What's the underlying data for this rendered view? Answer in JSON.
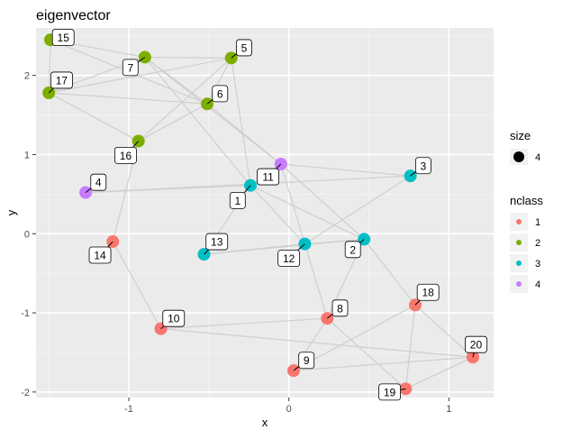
{
  "chart_data": {
    "type": "scatter",
    "title": "eigenvector",
    "xlabel": "x",
    "ylabel": "y",
    "xlim": [
      -1.58,
      1.28
    ],
    "ylim": [
      -2.07,
      2.6
    ],
    "x_ticks": [
      -1,
      0,
      1
    ],
    "y_ticks": [
      -2,
      -1,
      0,
      1,
      2
    ],
    "grid": true,
    "legend_placement": "right",
    "size_legend": {
      "title": "size",
      "entries": [
        {
          "label": "4"
        }
      ]
    },
    "color_legend": {
      "title": "nclass",
      "entries": [
        {
          "label": "1",
          "color": "#F8766D"
        },
        {
          "label": "2",
          "color": "#7CAE00"
        },
        {
          "label": "3",
          "color": "#00BFC4"
        },
        {
          "label": "4",
          "color": "#C77CFF"
        }
      ]
    },
    "nodes": [
      {
        "id": "1",
        "x": -0.24,
        "y": 0.61,
        "nclass": "3",
        "label_x": -0.32,
        "label_y": 0.42
      },
      {
        "id": "2",
        "x": 0.47,
        "y": -0.07,
        "nclass": "3",
        "label_x": 0.4,
        "label_y": -0.2
      },
      {
        "id": "3",
        "x": 0.76,
        "y": 0.73,
        "nclass": "3",
        "label_x": 0.84,
        "label_y": 0.86
      },
      {
        "id": "4",
        "x": -1.27,
        "y": 0.52,
        "nclass": "4",
        "label_x": -1.19,
        "label_y": 0.65
      },
      {
        "id": "5",
        "x": -0.36,
        "y": 2.22,
        "nclass": "2",
        "label_x": -0.28,
        "label_y": 2.35
      },
      {
        "id": "6",
        "x": -0.51,
        "y": 1.64,
        "nclass": "2",
        "label_x": -0.43,
        "label_y": 1.77
      },
      {
        "id": "7",
        "x": -0.9,
        "y": 2.23,
        "nclass": "2",
        "label_x": -0.99,
        "label_y": 2.1
      },
      {
        "id": "8",
        "x": 0.24,
        "y": -1.07,
        "nclass": "1",
        "label_x": 0.32,
        "label_y": -0.94
      },
      {
        "id": "9",
        "x": 0.03,
        "y": -1.73,
        "nclass": "1",
        "label_x": 0.11,
        "label_y": -1.6
      },
      {
        "id": "10",
        "x": -0.8,
        "y": -1.2,
        "nclass": "1",
        "label_x": -0.72,
        "label_y": -1.07
      },
      {
        "id": "11",
        "x": -0.05,
        "y": 0.88,
        "nclass": "4",
        "label_x": -0.13,
        "label_y": 0.72
      },
      {
        "id": "12",
        "x": 0.1,
        "y": -0.13,
        "nclass": "3",
        "label_x": 0.0,
        "label_y": -0.31
      },
      {
        "id": "13",
        "x": -0.53,
        "y": -0.26,
        "nclass": "3",
        "label_x": -0.45,
        "label_y": -0.1
      },
      {
        "id": "14",
        "x": -1.1,
        "y": -0.1,
        "nclass": "1",
        "label_x": -1.18,
        "label_y": -0.27
      },
      {
        "id": "15",
        "x": -1.49,
        "y": 2.45,
        "nclass": "2",
        "label_x": -1.41,
        "label_y": 2.48
      },
      {
        "id": "16",
        "x": -0.94,
        "y": 1.17,
        "nclass": "2",
        "label_x": -1.02,
        "label_y": 0.99
      },
      {
        "id": "17",
        "x": -1.5,
        "y": 1.78,
        "nclass": "2",
        "label_x": -1.42,
        "label_y": 1.94
      },
      {
        "id": "18",
        "x": 0.79,
        "y": -0.9,
        "nclass": "1",
        "label_x": 0.87,
        "label_y": -0.74
      },
      {
        "id": "19",
        "x": 0.73,
        "y": -1.96,
        "nclass": "1",
        "label_x": 0.63,
        "label_y": -2.0
      },
      {
        "id": "20",
        "x": 1.15,
        "y": -1.56,
        "nclass": "1",
        "label_x": 1.17,
        "label_y": -1.4
      }
    ],
    "edges": [
      [
        "15",
        "17"
      ],
      [
        "15",
        "7"
      ],
      [
        "15",
        "6"
      ],
      [
        "17",
        "7"
      ],
      [
        "17",
        "5"
      ],
      [
        "17",
        "16"
      ],
      [
        "17",
        "6"
      ],
      [
        "7",
        "5"
      ],
      [
        "7",
        "6"
      ],
      [
        "7",
        "11"
      ],
      [
        "7",
        "1"
      ],
      [
        "5",
        "6"
      ],
      [
        "5",
        "16"
      ],
      [
        "5",
        "1"
      ],
      [
        "6",
        "11"
      ],
      [
        "6",
        "16"
      ],
      [
        "16",
        "14"
      ],
      [
        "11",
        "3"
      ],
      [
        "11",
        "12"
      ],
      [
        "11",
        "2"
      ],
      [
        "11",
        "1"
      ],
      [
        "4",
        "3"
      ],
      [
        "4",
        "1"
      ],
      [
        "1",
        "13"
      ],
      [
        "1",
        "12"
      ],
      [
        "1",
        "2"
      ],
      [
        "3",
        "12"
      ],
      [
        "13",
        "12"
      ],
      [
        "13",
        "2"
      ],
      [
        "12",
        "2"
      ],
      [
        "12",
        "8"
      ],
      [
        "14",
        "10"
      ],
      [
        "10",
        "8"
      ],
      [
        "10",
        "20"
      ],
      [
        "2",
        "8"
      ],
      [
        "2",
        "18"
      ],
      [
        "8",
        "9"
      ],
      [
        "8",
        "19"
      ],
      [
        "9",
        "18"
      ],
      [
        "9",
        "20"
      ],
      [
        "18",
        "19"
      ],
      [
        "18",
        "20"
      ],
      [
        "19",
        "20"
      ]
    ]
  }
}
